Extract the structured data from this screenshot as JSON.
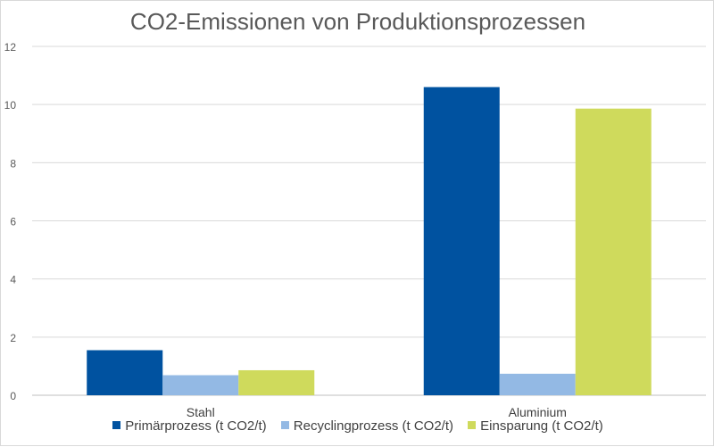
{
  "chart_data": {
    "type": "bar",
    "title": "CO2-Emissionen von Produktionsprozessen",
    "categories": [
      "Stahl",
      "Aluminium"
    ],
    "series": [
      {
        "name": "Primärprozess (t CO2/t)",
        "values": [
          1.55,
          10.6
        ],
        "color": "#0052a0"
      },
      {
        "name": "Recyclingprozess (t CO2/t)",
        "values": [
          0.69,
          0.74
        ],
        "color": "#93b9e4"
      },
      {
        "name": "Einsparung (t CO2/t)",
        "values": [
          0.86,
          9.86
        ],
        "color": "#cfda5c"
      }
    ],
    "ylim": [
      0,
      12
    ],
    "yticks": [
      "0",
      "2",
      "4",
      "6",
      "8",
      "10",
      "12"
    ],
    "grid": true,
    "legend_position": "bottom"
  }
}
